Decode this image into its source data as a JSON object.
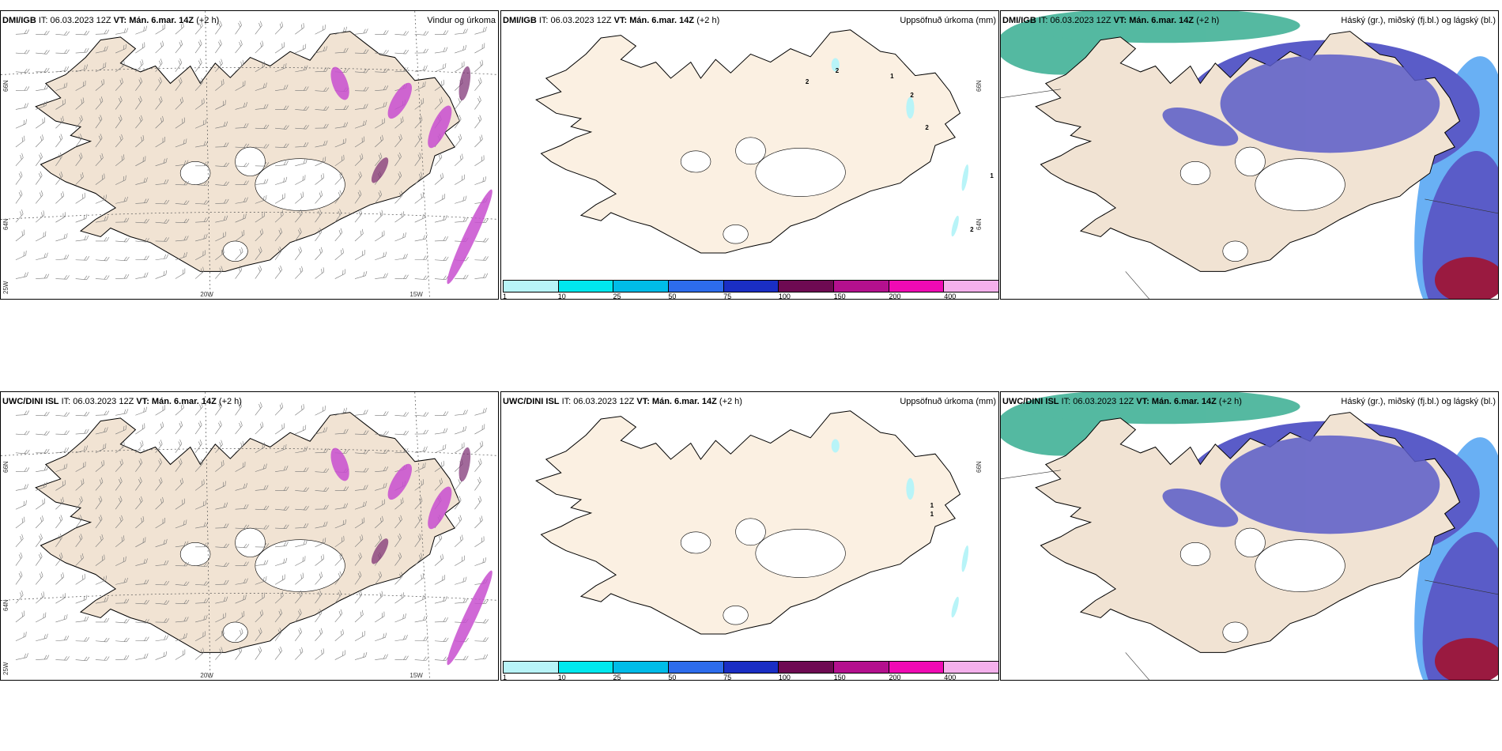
{
  "panels": [
    {
      "id": "p1",
      "source": "DMI/IGB",
      "it": "IT: 06.03.2023 12Z",
      "vt": "VT: Mán. 6.mar. 14Z",
      "plus": "(+2 h)",
      "title": "Vindur og úrkoma",
      "kind": "wind",
      "lat": [
        "66N",
        "64N",
        "25W"
      ],
      "lon": [
        "20W",
        "15W"
      ]
    },
    {
      "id": "p2",
      "source": "DMI/IGB",
      "it": "IT: 06.03.2023 12Z",
      "vt": "VT: Mán. 6.mar. 14Z",
      "plus": "(+2 h)",
      "title": "Uppsöfnuð úrkoma (mm)",
      "kind": "precip",
      "lat": [
        "66N",
        "64N"
      ],
      "labels": [
        "2",
        "2",
        "1",
        "2",
        "2",
        "1",
        "2"
      ]
    },
    {
      "id": "p3",
      "source": "DMI/IGB",
      "it": "IT: 06.03.2023 12Z",
      "vt": "VT: Mán. 6.mar. 14Z",
      "plus": "(+2 h)",
      "title": "Háský (gr.), miðský (fj.bl.) og lágský (bl.)",
      "kind": "cloud"
    },
    {
      "id": "p4",
      "source": "UWC/DINI ISL",
      "it": "IT: 06.03.2023 12Z",
      "vt": "VT: Mán. 6.mar. 14Z",
      "plus": "(+2 h)",
      "title": "",
      "kind": "wind",
      "lat": [
        "66N",
        "64N",
        "25W"
      ],
      "lon": [
        "20W",
        "15W"
      ]
    },
    {
      "id": "p5",
      "source": "UWC/DINI ISL",
      "it": "IT: 06.03.2023 12Z",
      "vt": "VT: Mán. 6.mar. 14Z",
      "plus": "(+2 h)",
      "title": "Uppsöfnuð úrkoma (mm)",
      "kind": "precip",
      "lat": [
        "66N"
      ],
      "labels": [
        "1",
        "1"
      ]
    },
    {
      "id": "p6",
      "source": "UWC/DINI ISL",
      "it": "IT: 06.03.2023 12Z",
      "vt": "VT: Mán. 6.mar. 14Z",
      "plus": "(+2 h)",
      "title": "Háský (gr.), miðský (fj.bl.) og lágský (bl.)",
      "kind": "cloud"
    }
  ],
  "colorbar": {
    "ticks": [
      "1",
      "10",
      "25",
      "50",
      "75",
      "100",
      "150",
      "200",
      "400"
    ],
    "colors": [
      "#b8f4f8",
      "#00e8ee",
      "#00bce8",
      "#2d6cec",
      "#1a2ec4",
      "#6e0a52",
      "#b4108e",
      "#f00ab4",
      "#f4b0ec"
    ]
  },
  "colors": {
    "land": "#f1e3d3",
    "land2": "#fbf0e2",
    "ice": "#ffffff",
    "sea": "#ffffff",
    "precipPink": "#c84fd0",
    "precipDark": "#7a2a70",
    "cloudLow": "#5a5cc8",
    "cloudMid": "#2a8ff0",
    "cloudHigh": "#2aa88a",
    "cloudTop": "#9a1a40"
  }
}
